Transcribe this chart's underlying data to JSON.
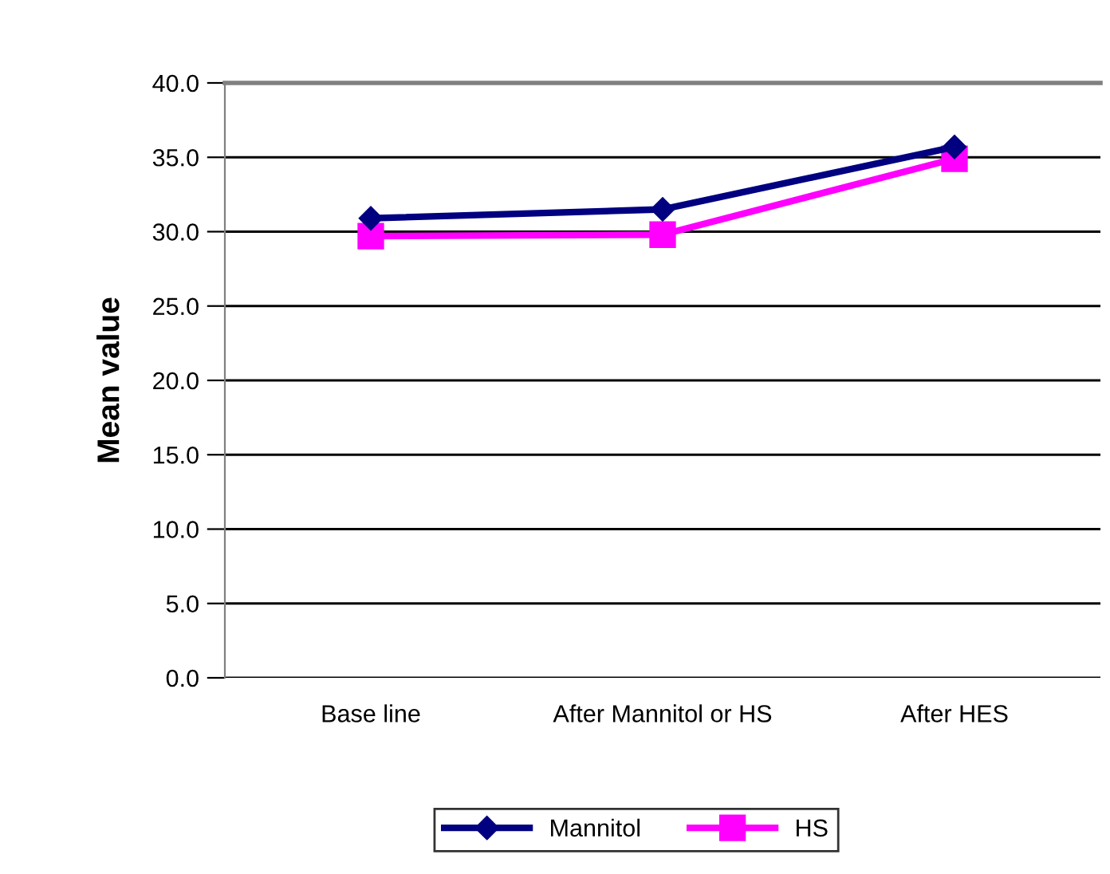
{
  "chart_data": {
    "type": "line",
    "ylabel": "Mean value",
    "categories": [
      "Base line",
      "After Mannitol or HS",
      "After HES"
    ],
    "series": [
      {
        "name": "Mannitol",
        "color": "#000080",
        "marker": "diamond",
        "values": [
          30.9,
          31.5,
          35.7
        ]
      },
      {
        "name": "HS",
        "color": "#ff00ff",
        "marker": "square",
        "values": [
          29.7,
          29.8,
          34.9
        ]
      }
    ],
    "ylim": [
      0,
      40
    ],
    "yticks": [
      {
        "value": 0,
        "label": "0.0"
      },
      {
        "value": 5,
        "label": "5.0"
      },
      {
        "value": 10,
        "label": "10.0"
      },
      {
        "value": 15,
        "label": "15.0"
      },
      {
        "value": 20,
        "label": "20.0"
      },
      {
        "value": 25,
        "label": "25.0"
      },
      {
        "value": 30,
        "label": "30.0"
      },
      {
        "value": 35,
        "label": "35.0"
      },
      {
        "value": 40,
        "label": "40.0"
      }
    ],
    "grid": "y",
    "legend": "bottom",
    "line_style": "solid"
  }
}
